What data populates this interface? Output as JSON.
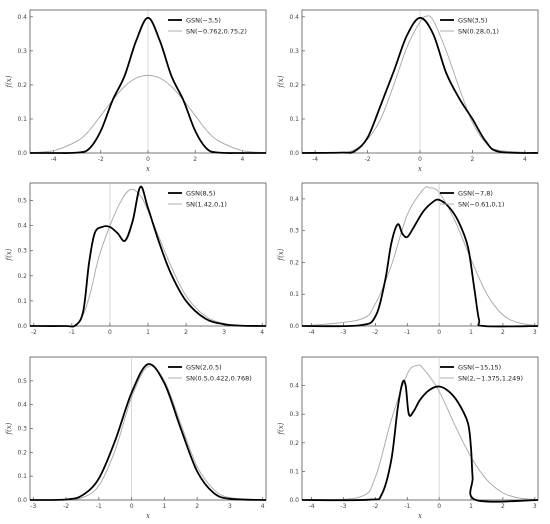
{
  "figure": {
    "colors": {
      "gsn": "#000000",
      "sn": "#a6a6a6",
      "axis": "#888888",
      "frame": "#555555"
    }
  },
  "chart_data": [
    {
      "type": "line",
      "xlabel": "x",
      "ylabel": "f(x)",
      "xlim": [
        -5,
        5
      ],
      "ylim": [
        0,
        0.42
      ],
      "xticks": [
        "-4",
        "-2",
        "0",
        "2",
        "4"
      ],
      "yticks": [
        "0.0",
        "0.1",
        "0.2",
        "0.3",
        "0.4"
      ],
      "legend_position": "top-right",
      "series": [
        {
          "name": "GSN(−3,5)",
          "style": "thick-black",
          "x": [
            -5,
            -4,
            -3,
            -2.5,
            -2,
            -1.5,
            -1,
            -0.5,
            0,
            0.5,
            1,
            1.5,
            2,
            2.5,
            3,
            4,
            5
          ],
          "y": [
            0,
            0,
            0.001,
            0.012,
            0.065,
            0.155,
            0.225,
            0.33,
            0.397,
            0.33,
            0.225,
            0.155,
            0.065,
            0.012,
            0.001,
            0,
            0
          ]
        },
        {
          "name": "SN(−0.762,0.75,2)",
          "style": "thin-gray",
          "x": [
            -5,
            -4,
            -3,
            -2.5,
            -2,
            -1.5,
            -1,
            -0.5,
            0,
            0.5,
            1,
            1.5,
            2,
            2.5,
            3,
            4,
            5
          ],
          "y": [
            0.001,
            0.007,
            0.035,
            0.065,
            0.11,
            0.155,
            0.195,
            0.22,
            0.228,
            0.22,
            0.195,
            0.155,
            0.11,
            0.065,
            0.035,
            0.007,
            0.001
          ]
        }
      ]
    },
    {
      "type": "line",
      "xlabel": "x",
      "ylabel": "f(x)",
      "xlim": [
        -4.5,
        4.5
      ],
      "ylim": [
        0,
        0.42
      ],
      "xticks": [
        "-4",
        "-2",
        "0",
        "2",
        "4"
      ],
      "yticks": [
        "0.0",
        "0.1",
        "0.2",
        "0.3",
        "0.4"
      ],
      "legend_position": "top-right",
      "series": [
        {
          "name": "GSN(3,5)",
          "style": "thick-black",
          "x": [
            -4.5,
            -3,
            -2.5,
            -2,
            -1.5,
            -1,
            -0.5,
            0,
            0.5,
            1,
            1.5,
            2,
            2.5,
            3,
            4.5
          ],
          "y": [
            0,
            0.001,
            0.005,
            0.045,
            0.14,
            0.24,
            0.345,
            0.397,
            0.35,
            0.235,
            0.16,
            0.1,
            0.035,
            0.004,
            0
          ]
        },
        {
          "name": "SN(0.28,0,1)",
          "style": "thin-gray",
          "x": [
            -4.5,
            -3,
            -2.5,
            -2,
            -1.5,
            -1,
            -0.5,
            0,
            0.25,
            0.5,
            1,
            1.5,
            2,
            2.5,
            3,
            4.5
          ],
          "y": [
            0,
            0.002,
            0.01,
            0.04,
            0.1,
            0.2,
            0.31,
            0.385,
            0.402,
            0.39,
            0.3,
            0.19,
            0.09,
            0.03,
            0.008,
            0
          ]
        }
      ]
    },
    {
      "type": "line",
      "xlabel": "",
      "ylabel": "f(x)",
      "xlim": [
        -2.1,
        4.1
      ],
      "ylim": [
        0,
        0.57
      ],
      "xticks": [
        "-2",
        "-1",
        "0",
        "1",
        "2",
        "3",
        "4"
      ],
      "yticks": [
        "0.0",
        "0.1",
        "0.2",
        "0.3",
        "0.4",
        "0.5"
      ],
      "legend_position": "top-right",
      "series": [
        {
          "name": "GSN(8,5)",
          "style": "thick-black",
          "x": [
            -2.1,
            -1.2,
            -0.9,
            -0.7,
            -0.55,
            -0.4,
            -0.2,
            0,
            0.2,
            0.4,
            0.6,
            0.8,
            1.0,
            1.3,
            1.6,
            2,
            2.5,
            3,
            3.5,
            4.1
          ],
          "y": [
            0,
            0,
            0.003,
            0.06,
            0.25,
            0.37,
            0.395,
            0.395,
            0.37,
            0.34,
            0.42,
            0.555,
            0.47,
            0.33,
            0.21,
            0.1,
            0.03,
            0.007,
            0.001,
            0
          ]
        },
        {
          "name": "SN(1.42,0,1)",
          "style": "thin-gray",
          "x": [
            -2.1,
            -1.2,
            -0.9,
            -0.7,
            -0.5,
            -0.3,
            0,
            0.3,
            0.55,
            0.8,
            1.0,
            1.3,
            1.6,
            2,
            2.5,
            3,
            3.5,
            4.1
          ],
          "y": [
            0,
            0,
            0.005,
            0.045,
            0.14,
            0.27,
            0.4,
            0.5,
            0.545,
            0.52,
            0.46,
            0.35,
            0.24,
            0.12,
            0.04,
            0.01,
            0.002,
            0
          ]
        }
      ]
    },
    {
      "type": "line",
      "xlabel": "",
      "ylabel": "f(x)",
      "xlim": [
        -4.3,
        3.1
      ],
      "ylim": [
        0,
        0.45
      ],
      "xticks": [
        "-4",
        "-3",
        "-2",
        "-1",
        "0",
        "1",
        "2",
        "3"
      ],
      "yticks": [
        "0.0",
        "0.1",
        "0.2",
        "0.3",
        "0.4"
      ],
      "legend_position": "top-right",
      "series": [
        {
          "name": "GSN(−7,8)",
          "style": "thick-black",
          "x": [
            -4.3,
            -2.5,
            -2,
            -1.7,
            -1.5,
            -1.3,
            -1.15,
            -1.0,
            -0.8,
            -0.5,
            -0.2,
            0,
            0.3,
            0.6,
            0.9,
            1.1,
            1.25,
            1.4,
            3.1
          ],
          "y": [
            0,
            0.002,
            0.03,
            0.14,
            0.26,
            0.32,
            0.29,
            0.28,
            0.31,
            0.36,
            0.39,
            0.397,
            0.375,
            0.33,
            0.25,
            0.12,
            0.02,
            0,
            0
          ]
        },
        {
          "name": "SN(−0.61,0,1)",
          "style": "thin-gray",
          "x": [
            -4.3,
            -2.5,
            -2,
            -1.5,
            -1,
            -0.5,
            -0.3,
            0,
            0.5,
            1,
            1.5,
            2,
            2.5,
            3.1
          ],
          "y": [
            0,
            0.02,
            0.07,
            0.19,
            0.35,
            0.43,
            0.435,
            0.42,
            0.33,
            0.21,
            0.1,
            0.035,
            0.01,
            0.001
          ]
        }
      ]
    },
    {
      "type": "line",
      "xlabel": "x",
      "ylabel": "f(x)",
      "xlim": [
        -3.1,
        4.1
      ],
      "ylim": [
        0,
        0.6
      ],
      "xticks": [
        "-3",
        "-2",
        "-1",
        "0",
        "1",
        "2",
        "3",
        "4"
      ],
      "yticks": [
        "0.0",
        "0.1",
        "0.2",
        "0.3",
        "0.4",
        "0.5"
      ],
      "legend_position": "top-right",
      "series": [
        {
          "name": "GSN(2,0.5)",
          "style": "thick-black",
          "x": [
            -3.1,
            -2,
            -1.5,
            -1,
            -0.5,
            0,
            0.5,
            1,
            1.5,
            2,
            2.5,
            3,
            4.1
          ],
          "y": [
            0,
            0.002,
            0.02,
            0.09,
            0.25,
            0.45,
            0.57,
            0.49,
            0.3,
            0.12,
            0.03,
            0.005,
            0
          ]
        },
        {
          "name": "SN(0.5,0.422,0.768)",
          "style": "thin-gray",
          "x": [
            -3.1,
            -2,
            -1.5,
            -1,
            -0.5,
            0,
            0.5,
            1,
            1.5,
            2,
            2.5,
            3,
            4.1
          ],
          "y": [
            0,
            0.001,
            0.01,
            0.06,
            0.21,
            0.43,
            0.56,
            0.5,
            0.32,
            0.14,
            0.045,
            0.01,
            0
          ]
        }
      ]
    },
    {
      "type": "line",
      "xlabel": "x",
      "ylabel": "f(x)",
      "xlim": [
        -4.3,
        3.1
      ],
      "ylim": [
        0,
        0.5
      ],
      "xticks": [
        "-4",
        "-3",
        "-2",
        "-1",
        "0",
        "1",
        "2",
        "3"
      ],
      "yticks": [
        "0.0",
        "0.1",
        "0.2",
        "0.3",
        "0.4"
      ],
      "legend_position": "top-right",
      "series": [
        {
          "name": "GSN(−15,15)",
          "style": "thick-black",
          "x": [
            -4.3,
            -2.2,
            -1.8,
            -1.5,
            -1.3,
            -1.15,
            -1.05,
            -0.95,
            -0.8,
            -0.6,
            -0.3,
            0,
            0.3,
            0.6,
            0.9,
            1.0,
            1.05,
            1.15,
            3.1
          ],
          "y": [
            0,
            0.001,
            0.02,
            0.14,
            0.32,
            0.41,
            0.4,
            0.3,
            0.31,
            0.35,
            0.385,
            0.397,
            0.38,
            0.34,
            0.27,
            0.18,
            0.08,
            0,
            0
          ]
        },
        {
          "name": "SN(2,−1.375,1.249)",
          "style": "thin-gray",
          "x": [
            -4.3,
            -2.5,
            -2,
            -1.5,
            -1,
            -0.7,
            -0.5,
            0,
            0.5,
            1,
            1.5,
            2,
            2.5,
            3.1
          ],
          "y": [
            0,
            0.01,
            0.08,
            0.28,
            0.44,
            0.47,
            0.46,
            0.38,
            0.26,
            0.15,
            0.07,
            0.025,
            0.007,
            0.001
          ]
        }
      ]
    }
  ]
}
